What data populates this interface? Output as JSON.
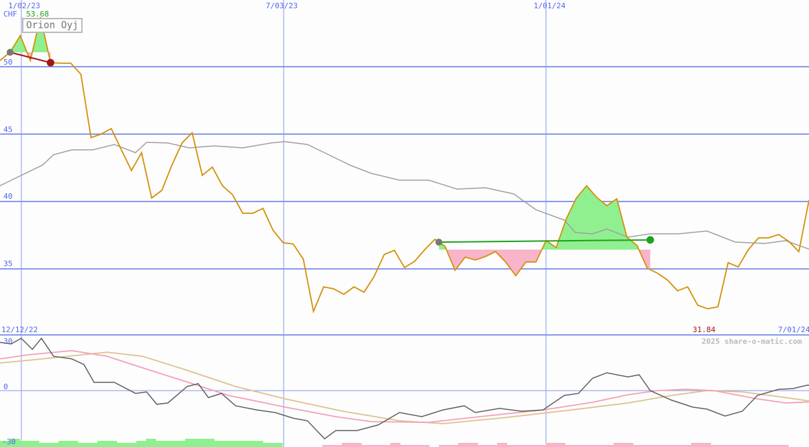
{
  "chart_data": {
    "type": "line",
    "title": "Orion Oyj",
    "currency": "CHF",
    "max_label": "53.68",
    "min_label": "31.84",
    "start_date_label": "12/12/22",
    "end_date_label": "7/01/24",
    "x_tick_labels": [
      "1/02/23",
      "7/03/23",
      "1/01/24"
    ],
    "y_ticks": [
      50,
      45,
      40,
      35
    ],
    "y_range": [
      32,
      53.68
    ],
    "watermark": "2025 share-o-matic.com",
    "colors": {
      "price": "#d4900a",
      "ma": "#a0a0a0",
      "grid": "#8899ee",
      "up": "#90f090",
      "down": "#f8b4c8",
      "red_line": "#a01818",
      "green_line": "#20a020"
    },
    "price": [
      50.46,
      51.07,
      52.3,
      50.46,
      53.68,
      50.3,
      50.26,
      50.26,
      49.44,
      44.74,
      45.0,
      45.41,
      43.83,
      42.3,
      43.62,
      40.26,
      40.82,
      42.7,
      44.34,
      45.1,
      41.94,
      42.55,
      41.17,
      40.5,
      39.13,
      39.13,
      39.49,
      37.86,
      36.94,
      36.84,
      35.71,
      31.84,
      33.67,
      33.52,
      33.11,
      33.67,
      33.27,
      34.44,
      36.07,
      36.38,
      35.1,
      35.56,
      36.43,
      37.19,
      36.68,
      34.9,
      35.87,
      35.66,
      35.92,
      36.28,
      35.51,
      34.49,
      35.51,
      35.51,
      37.09,
      36.58,
      38.72,
      40.26,
      41.17,
      40.31,
      39.69,
      40.2,
      37.35,
      36.73,
      35.05,
      34.69,
      34.18,
      33.37,
      33.67,
      32.3,
      32.04,
      32.19,
      35.46,
      35.15,
      36.43,
      37.3,
      37.3,
      37.55,
      37.04,
      36.28,
      40.1
    ],
    "moving_average": [
      [
        0,
        41.17
      ],
      [
        2.1,
        41.94
      ],
      [
        4.2,
        42.7
      ],
      [
        5.3,
        43.47
      ],
      [
        7.1,
        43.83
      ],
      [
        9.2,
        43.83
      ],
      [
        11.3,
        44.23
      ],
      [
        13.4,
        43.62
      ],
      [
        14.5,
        44.39
      ],
      [
        16.6,
        44.34
      ],
      [
        18.7,
        43.98
      ],
      [
        21.2,
        44.13
      ],
      [
        24,
        43.98
      ],
      [
        26.8,
        44.34
      ],
      [
        28.2,
        44.44
      ],
      [
        30.4,
        44.23
      ],
      [
        32.5,
        43.47
      ],
      [
        34.6,
        42.7
      ],
      [
        36.7,
        42.09
      ],
      [
        39.5,
        41.58
      ],
      [
        42.4,
        41.58
      ],
      [
        45.2,
        40.92
      ],
      [
        48,
        41.02
      ],
      [
        50.8,
        40.56
      ],
      [
        53,
        39.39
      ],
      [
        55.8,
        38.62
      ],
      [
        56.9,
        37.7
      ],
      [
        58.6,
        37.6
      ],
      [
        60,
        37.96
      ],
      [
        62.1,
        37.35
      ],
      [
        64.3,
        37.6
      ],
      [
        67.1,
        37.6
      ],
      [
        69.9,
        37.81
      ],
      [
        72.7,
        36.99
      ],
      [
        75.6,
        36.89
      ],
      [
        77.7,
        37.09
      ],
      [
        80.5,
        36.33
      ],
      [
        81.9,
        35.82
      ],
      [
        83,
        36.33
      ]
    ],
    "signals": [
      {
        "from": 1,
        "to": 5,
        "base": 51.07,
        "end": 50.3,
        "color": "red"
      },
      {
        "from": 43.4,
        "to": 64.3,
        "base": 36.43,
        "end": 37.15,
        "color": "green"
      },
      {
        "from": 80.9,
        "to": 83,
        "base": 37.04,
        "end": 40.1,
        "color": "green"
      }
    ],
    "oscillator": {
      "y_ticks": [
        30,
        0,
        -30
      ],
      "momentum": [
        [
          0,
          29.2
        ],
        [
          1.1,
          28.3
        ],
        [
          2.1,
          31.7
        ],
        [
          3.2,
          25
        ],
        [
          4.1,
          31.7
        ],
        [
          5.3,
          20.8
        ],
        [
          7.1,
          19.2
        ],
        [
          8.3,
          15.8
        ],
        [
          9.3,
          5
        ],
        [
          11.3,
          5
        ],
        [
          13.4,
          -1.7
        ],
        [
          14.5,
          -0.8
        ],
        [
          15.5,
          -8.3
        ],
        [
          16.6,
          -7.5
        ],
        [
          18.5,
          2.5
        ],
        [
          19.6,
          4.2
        ],
        [
          20.6,
          -4.2
        ],
        [
          21.9,
          -1.7
        ],
        [
          23.3,
          -9.2
        ],
        [
          25.4,
          -11.7
        ],
        [
          27.2,
          -13.3
        ],
        [
          29,
          -16.7
        ],
        [
          30.4,
          -18.3
        ],
        [
          32.1,
          -29.2
        ],
        [
          33.2,
          -24.2
        ],
        [
          35.3,
          -24.2
        ],
        [
          37.4,
          -20.8
        ],
        [
          39.5,
          -13.3
        ],
        [
          41.7,
          -15.8
        ],
        [
          43.8,
          -11.7
        ],
        [
          45.9,
          -9.2
        ],
        [
          47,
          -13.3
        ],
        [
          49.4,
          -10.8
        ],
        [
          51.6,
          -12.5
        ],
        [
          53.7,
          -11.7
        ],
        [
          55.8,
          -2.9
        ],
        [
          57.2,
          -1.7
        ],
        [
          58.6,
          7.5
        ],
        [
          60,
          10.8
        ],
        [
          62.1,
          8.3
        ],
        [
          63.2,
          9.6
        ],
        [
          64.3,
          0
        ],
        [
          66.4,
          -5.8
        ],
        [
          68.5,
          -10
        ],
        [
          69.9,
          -11.2
        ],
        [
          71.7,
          -15.4
        ],
        [
          73.4,
          -12.5
        ],
        [
          74.9,
          -2.9
        ],
        [
          77,
          0.8
        ],
        [
          78.4,
          1.2
        ],
        [
          79.8,
          3.3
        ],
        [
          81.9,
          2.5
        ],
        [
          83,
          12.5
        ]
      ],
      "fast": [
        [
          0,
          19.2
        ],
        [
          2.8,
          21.7
        ],
        [
          7.1,
          24.2
        ],
        [
          10.6,
          20.8
        ],
        [
          14.1,
          13.8
        ],
        [
          18.4,
          5.4
        ],
        [
          22.6,
          -2.9
        ],
        [
          28.2,
          -10
        ],
        [
          33.2,
          -15.8
        ],
        [
          36.7,
          -18.8
        ],
        [
          42.4,
          -19.2
        ],
        [
          48,
          -15.4
        ],
        [
          53.7,
          -11.7
        ],
        [
          58.6,
          -7.1
        ],
        [
          62.1,
          -2.5
        ],
        [
          65,
          0
        ],
        [
          67.8,
          0.8
        ],
        [
          70.6,
          0
        ],
        [
          74.9,
          -5
        ],
        [
          77.7,
          -7.5
        ],
        [
          80.5,
          -6.7
        ],
        [
          83,
          -3.8
        ]
      ],
      "slow": [
        [
          0,
          16.7
        ],
        [
          4.2,
          19.2
        ],
        [
          10.6,
          23.3
        ],
        [
          14.1,
          20.8
        ],
        [
          18.4,
          12.5
        ],
        [
          23.3,
          2.5
        ],
        [
          28.2,
          -5
        ],
        [
          33.9,
          -12.5
        ],
        [
          39.5,
          -18.3
        ],
        [
          43.8,
          -20
        ],
        [
          49.4,
          -16.7
        ],
        [
          56.5,
          -11.7
        ],
        [
          62.1,
          -7.5
        ],
        [
          66.4,
          -2.9
        ],
        [
          69.9,
          0
        ],
        [
          73.4,
          -0.8
        ],
        [
          77.7,
          -4.2
        ],
        [
          80.5,
          -6.7
        ],
        [
          83,
          -7.5
        ]
      ],
      "volume_up": [
        3,
        4,
        3,
        3,
        2,
        2,
        3,
        3,
        2,
        2,
        3,
        3,
        2,
        2,
        3,
        4,
        3,
        3,
        3,
        4,
        4,
        4,
        3,
        3,
        3,
        3,
        3,
        2,
        2
      ],
      "volume_down": [
        0,
        0,
        1,
        1,
        2,
        2,
        1,
        1,
        1,
        2,
        1,
        1,
        1,
        0,
        1,
        1,
        2,
        2,
        1,
        1,
        2,
        1,
        1,
        1,
        1,
        2,
        2,
        1,
        1,
        1,
        1,
        1,
        2,
        2,
        1,
        1,
        1,
        1,
        1,
        1,
        2,
        2,
        1,
        1,
        1,
        1,
        1,
        1,
        1,
        1
      ]
    }
  }
}
